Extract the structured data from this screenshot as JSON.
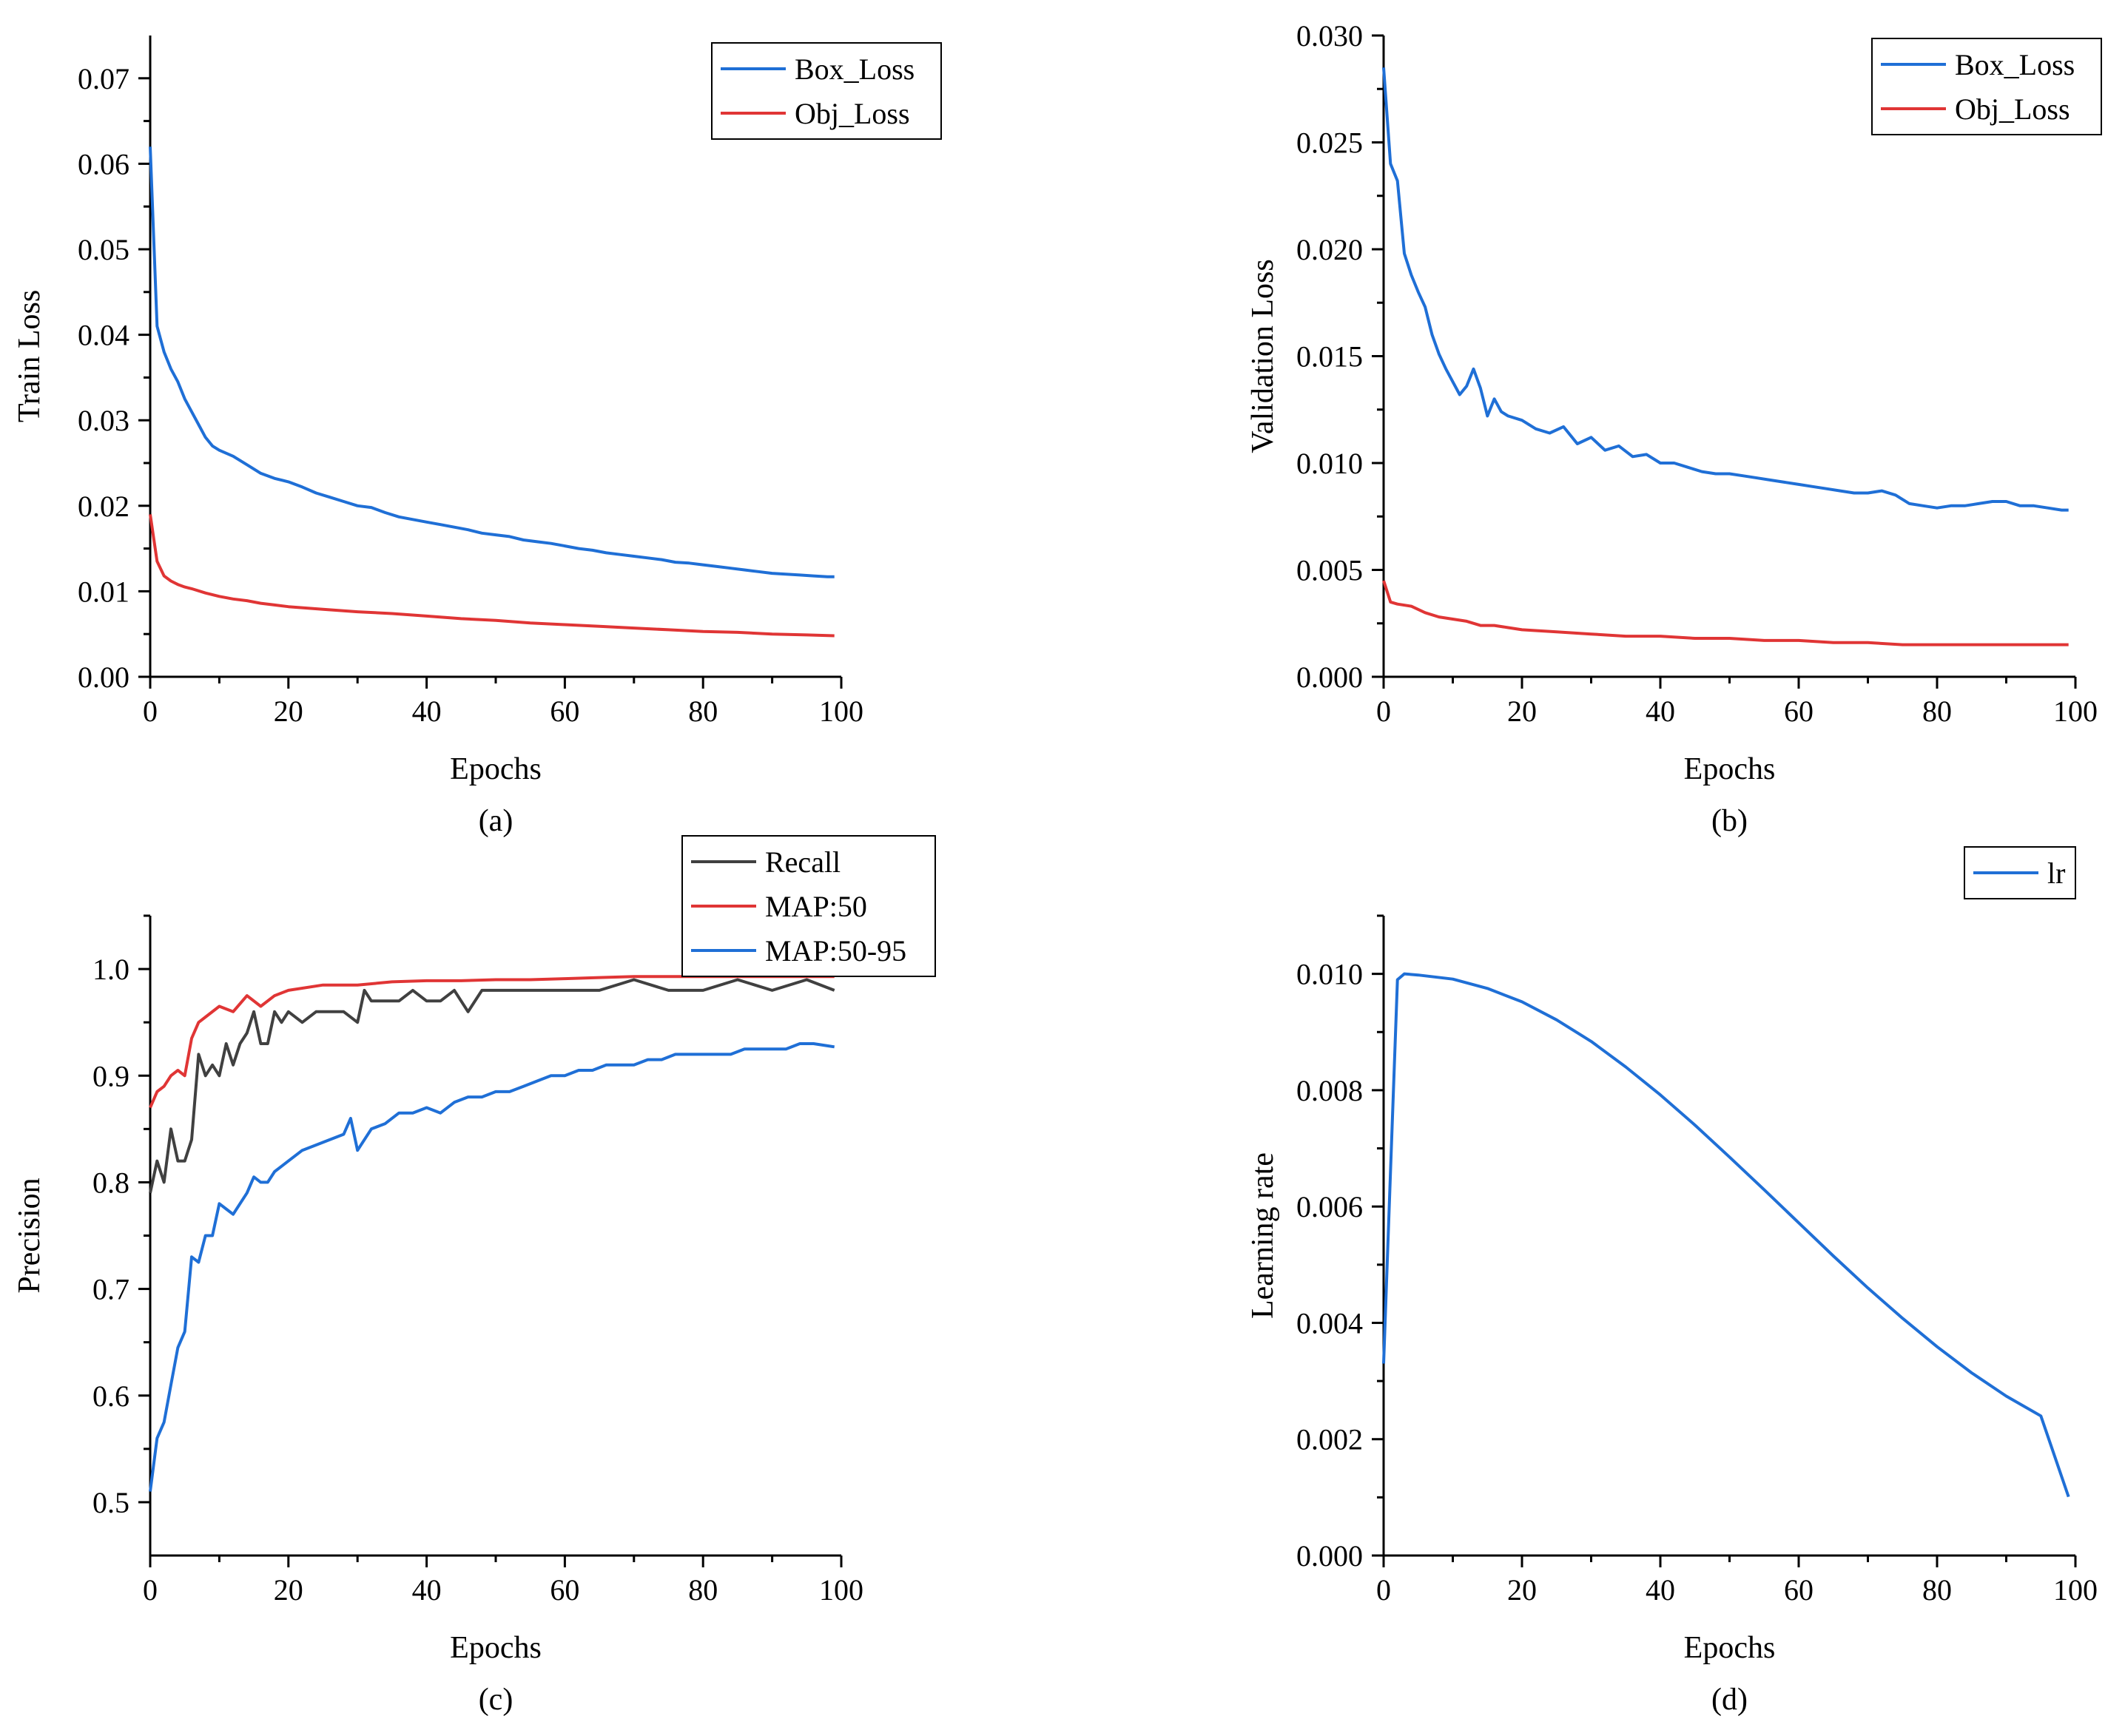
{
  "colors": {
    "blue": "#1f6fd6",
    "red": "#e03535",
    "gray": "#404040",
    "black": "#000000"
  },
  "chart_data": [
    {
      "id": "a",
      "type": "line",
      "panel_label": "(a)",
      "xlabel": "Epochs",
      "ylabel": "Train Loss",
      "xlim": [
        0,
        100
      ],
      "ylim": [
        0,
        0.075
      ],
      "xticks": [
        0,
        20,
        40,
        60,
        80,
        100
      ],
      "xtick_labels": [
        "0",
        "20",
        "40",
        "60",
        "80",
        "100"
      ],
      "yticks": [
        0,
        0.01,
        0.02,
        0.03,
        0.04,
        0.05,
        0.06,
        0.07
      ],
      "ytick_labels": [
        "0.00",
        "0.01",
        "0.02",
        "0.03",
        "0.04",
        "0.05",
        "0.06",
        "0.07"
      ],
      "legend_position": "top-right",
      "series": [
        {
          "name": "Box_Loss",
          "color": "#1f6fd6",
          "x": [
            0,
            1,
            2,
            3,
            4,
            5,
            6,
            7,
            8,
            9,
            10,
            12,
            14,
            16,
            18,
            20,
            22,
            24,
            26,
            28,
            30,
            32,
            34,
            36,
            38,
            40,
            42,
            44,
            46,
            48,
            50,
            52,
            54,
            56,
            58,
            60,
            62,
            64,
            66,
            68,
            70,
            72,
            74,
            76,
            78,
            80,
            82,
            84,
            86,
            88,
            90,
            92,
            94,
            96,
            98,
            99
          ],
          "y": [
            0.062,
            0.041,
            0.038,
            0.036,
            0.0345,
            0.0325,
            0.031,
            0.0295,
            0.028,
            0.027,
            0.0265,
            0.0258,
            0.0248,
            0.0238,
            0.0232,
            0.0228,
            0.0222,
            0.0215,
            0.021,
            0.0205,
            0.02,
            0.0198,
            0.0192,
            0.0187,
            0.0184,
            0.0181,
            0.0178,
            0.0175,
            0.0172,
            0.0168,
            0.0166,
            0.0164,
            0.016,
            0.0158,
            0.0156,
            0.0153,
            0.015,
            0.0148,
            0.0145,
            0.0143,
            0.0141,
            0.0139,
            0.0137,
            0.0134,
            0.0133,
            0.0131,
            0.0129,
            0.0127,
            0.0125,
            0.0123,
            0.0121,
            0.012,
            0.0119,
            0.0118,
            0.0117,
            0.0117
          ]
        },
        {
          "name": "Obj_Loss",
          "color": "#e03535",
          "x": [
            0,
            1,
            2,
            3,
            4,
            5,
            6,
            8,
            10,
            12,
            14,
            16,
            18,
            20,
            25,
            30,
            35,
            40,
            45,
            50,
            55,
            60,
            65,
            70,
            75,
            80,
            85,
            90,
            95,
            99
          ],
          "y": [
            0.019,
            0.0135,
            0.0118,
            0.0112,
            0.0108,
            0.0105,
            0.0103,
            0.0098,
            0.0094,
            0.0091,
            0.0089,
            0.0086,
            0.0084,
            0.0082,
            0.0079,
            0.0076,
            0.0074,
            0.0071,
            0.0068,
            0.0066,
            0.0063,
            0.0061,
            0.0059,
            0.0057,
            0.0055,
            0.0053,
            0.0052,
            0.005,
            0.0049,
            0.0048
          ]
        }
      ]
    },
    {
      "id": "b",
      "type": "line",
      "panel_label": "(b)",
      "xlabel": "Epochs",
      "ylabel": "Validation Loss",
      "xlim": [
        0,
        100
      ],
      "ylim": [
        0,
        0.03
      ],
      "xticks": [
        0,
        20,
        40,
        60,
        80,
        100
      ],
      "xtick_labels": [
        "0",
        "20",
        "40",
        "60",
        "80",
        "100"
      ],
      "yticks": [
        0,
        0.005,
        0.01,
        0.015,
        0.02,
        0.025,
        0.03
      ],
      "ytick_labels": [
        "0.000",
        "0.005",
        "0.010",
        "0.015",
        "0.020",
        "0.025",
        "0.030"
      ],
      "legend_position": "top-right",
      "series": [
        {
          "name": "Box_Loss",
          "color": "#1f6fd6",
          "x": [
            0,
            1,
            2,
            3,
            4,
            5,
            6,
            7,
            8,
            9,
            10,
            11,
            12,
            13,
            14,
            15,
            16,
            17,
            18,
            20,
            22,
            24,
            26,
            28,
            30,
            32,
            34,
            36,
            38,
            40,
            42,
            44,
            46,
            48,
            50,
            52,
            54,
            56,
            58,
            60,
            62,
            64,
            66,
            68,
            70,
            72,
            74,
            76,
            78,
            80,
            82,
            84,
            86,
            88,
            90,
            92,
            94,
            96,
            98,
            99
          ],
          "y": [
            0.0285,
            0.024,
            0.0232,
            0.0198,
            0.0188,
            0.018,
            0.0173,
            0.016,
            0.0151,
            0.0144,
            0.0138,
            0.0132,
            0.0136,
            0.0144,
            0.0135,
            0.0122,
            0.013,
            0.0124,
            0.0122,
            0.012,
            0.0116,
            0.0114,
            0.0117,
            0.0109,
            0.0112,
            0.0106,
            0.0108,
            0.0103,
            0.0104,
            0.01,
            0.01,
            0.0098,
            0.0096,
            0.0095,
            0.0095,
            0.0094,
            0.0093,
            0.0092,
            0.0091,
            0.009,
            0.0089,
            0.0088,
            0.0087,
            0.0086,
            0.0086,
            0.0087,
            0.0085,
            0.0081,
            0.008,
            0.0079,
            0.008,
            0.008,
            0.0081,
            0.0082,
            0.0082,
            0.008,
            0.008,
            0.0079,
            0.0078,
            0.0078
          ]
        },
        {
          "name": "Obj_Loss",
          "color": "#e03535",
          "x": [
            0,
            1,
            2,
            4,
            6,
            8,
            10,
            12,
            14,
            16,
            18,
            20,
            25,
            30,
            35,
            40,
            45,
            50,
            55,
            60,
            65,
            70,
            75,
            80,
            85,
            90,
            95,
            99
          ],
          "y": [
            0.0045,
            0.0035,
            0.0034,
            0.0033,
            0.003,
            0.0028,
            0.0027,
            0.0026,
            0.0024,
            0.0024,
            0.0023,
            0.0022,
            0.0021,
            0.002,
            0.0019,
            0.0019,
            0.0018,
            0.0018,
            0.0017,
            0.0017,
            0.0016,
            0.0016,
            0.0015,
            0.0015,
            0.0015,
            0.0015,
            0.0015,
            0.0015
          ]
        }
      ]
    },
    {
      "id": "c",
      "type": "line",
      "panel_label": "(c)",
      "xlabel": "Epochs",
      "ylabel": "Precision",
      "xlim": [
        0,
        100
      ],
      "ylim": [
        0.45,
        1.05
      ],
      "xticks": [
        0,
        20,
        40,
        60,
        80,
        100
      ],
      "xtick_labels": [
        "0",
        "20",
        "40",
        "60",
        "80",
        "100"
      ],
      "yticks": [
        0.5,
        0.6,
        0.7,
        0.8,
        0.9,
        1.0
      ],
      "ytick_labels": [
        "0.5",
        "0.6",
        "0.7",
        "0.8",
        "0.9",
        "1.0"
      ],
      "legend_position": "top-right",
      "series": [
        {
          "name": "Recall",
          "color": "#404040",
          "x": [
            0,
            1,
            2,
            3,
            4,
            5,
            6,
            7,
            8,
            9,
            10,
            11,
            12,
            13,
            14,
            15,
            16,
            17,
            18,
            19,
            20,
            22,
            24,
            26,
            28,
            30,
            31,
            32,
            34,
            36,
            38,
            40,
            42,
            44,
            46,
            48,
            50,
            55,
            60,
            65,
            70,
            75,
            80,
            85,
            90,
            95,
            99
          ],
          "y": [
            0.79,
            0.82,
            0.8,
            0.85,
            0.82,
            0.82,
            0.84,
            0.92,
            0.9,
            0.91,
            0.9,
            0.93,
            0.91,
            0.93,
            0.94,
            0.96,
            0.93,
            0.93,
            0.96,
            0.95,
            0.96,
            0.95,
            0.96,
            0.96,
            0.96,
            0.95,
            0.98,
            0.97,
            0.97,
            0.97,
            0.98,
            0.97,
            0.97,
            0.98,
            0.96,
            0.98,
            0.98,
            0.98,
            0.98,
            0.98,
            0.99,
            0.98,
            0.98,
            0.99,
            0.98,
            0.99,
            0.98
          ]
        },
        {
          "name": "MAP:50",
          "color": "#e03535",
          "x": [
            0,
            1,
            2,
            3,
            4,
            5,
            6,
            7,
            8,
            10,
            12,
            14,
            16,
            18,
            20,
            25,
            30,
            35,
            40,
            45,
            50,
            55,
            60,
            65,
            70,
            75,
            80,
            85,
            90,
            95,
            99
          ],
          "y": [
            0.87,
            0.885,
            0.89,
            0.9,
            0.905,
            0.9,
            0.935,
            0.95,
            0.955,
            0.965,
            0.96,
            0.975,
            0.965,
            0.975,
            0.98,
            0.985,
            0.985,
            0.988,
            0.989,
            0.989,
            0.99,
            0.99,
            0.991,
            0.992,
            0.993,
            0.993,
            0.993,
            0.993,
            0.993,
            0.993,
            0.993
          ]
        },
        {
          "name": "MAP:50-95",
          "color": "#1f6fd6",
          "x": [
            0,
            1,
            2,
            3,
            4,
            5,
            6,
            7,
            8,
            9,
            10,
            11,
            12,
            13,
            14,
            15,
            16,
            17,
            18,
            20,
            22,
            24,
            26,
            28,
            29,
            30,
            32,
            34,
            36,
            38,
            40,
            42,
            44,
            46,
            48,
            50,
            52,
            54,
            56,
            58,
            60,
            62,
            64,
            66,
            68,
            70,
            72,
            74,
            76,
            78,
            80,
            82,
            84,
            86,
            88,
            90,
            92,
            94,
            96,
            98,
            99
          ],
          "y": [
            0.51,
            0.56,
            0.575,
            0.61,
            0.645,
            0.66,
            0.73,
            0.725,
            0.75,
            0.75,
            0.78,
            0.775,
            0.77,
            0.78,
            0.79,
            0.805,
            0.8,
            0.8,
            0.81,
            0.82,
            0.83,
            0.835,
            0.84,
            0.845,
            0.86,
            0.83,
            0.85,
            0.855,
            0.865,
            0.865,
            0.87,
            0.865,
            0.875,
            0.88,
            0.88,
            0.885,
            0.885,
            0.89,
            0.895,
            0.9,
            0.9,
            0.905,
            0.905,
            0.91,
            0.91,
            0.91,
            0.915,
            0.915,
            0.92,
            0.92,
            0.92,
            0.92,
            0.92,
            0.925,
            0.925,
            0.925,
            0.925,
            0.93,
            0.93,
            0.928,
            0.927
          ]
        }
      ]
    },
    {
      "id": "d",
      "type": "line",
      "panel_label": "(d)",
      "xlabel": "Epochs",
      "ylabel": "Learning rate",
      "xlim": [
        0,
        100
      ],
      "ylim": [
        0,
        0.011
      ],
      "xticks": [
        0,
        20,
        40,
        60,
        80,
        100
      ],
      "xtick_labels": [
        "0",
        "20",
        "40",
        "60",
        "80",
        "100"
      ],
      "yticks": [
        0,
        0.002,
        0.004,
        0.006,
        0.008,
        0.01
      ],
      "ytick_labels": [
        "0.000",
        "0.002",
        "0.004",
        "0.006",
        "0.008",
        "0.010"
      ],
      "legend_position": "top-right",
      "series": [
        {
          "name": "lr",
          "color": "#1f6fd6",
          "x": [
            0,
            1,
            2,
            3,
            5,
            10,
            15,
            20,
            25,
            30,
            35,
            40,
            45,
            50,
            55,
            60,
            65,
            70,
            75,
            80,
            85,
            90,
            95,
            99
          ],
          "y": [
            0.0033,
            0.0066,
            0.0099,
            0.01,
            0.00998,
            0.00991,
            0.00975,
            0.00952,
            0.00921,
            0.00884,
            0.0084,
            0.00792,
            0.0074,
            0.00685,
            0.00629,
            0.00572,
            0.00515,
            0.0046,
            0.00408,
            0.00359,
            0.00314,
            0.00274,
            0.0024,
            0.00101
          ]
        }
      ]
    }
  ]
}
